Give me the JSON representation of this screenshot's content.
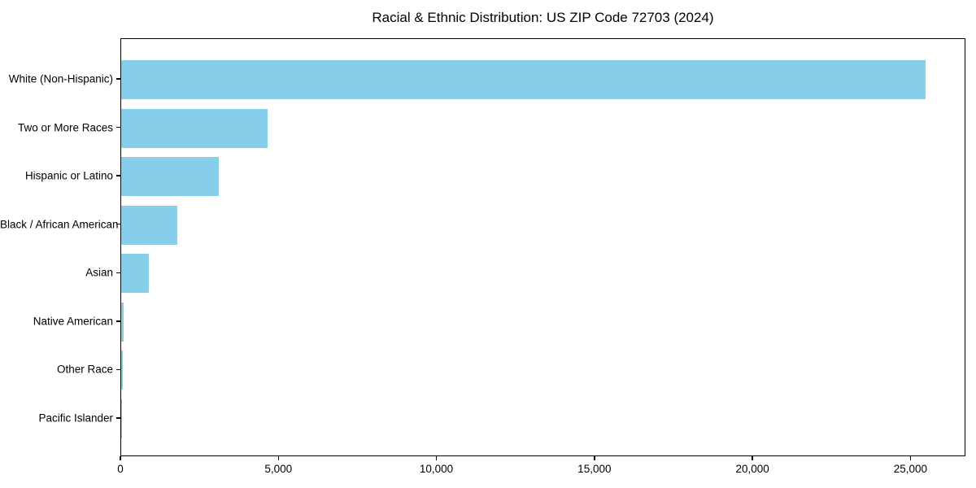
{
  "chart_data": {
    "type": "bar",
    "orientation": "horizontal",
    "title": "Racial & Ethnic Distribution: US ZIP Code 72703 (2024)",
    "categories": [
      "White (Non-Hispanic)",
      "Two or More Races",
      "Hispanic or Latino",
      "Black / African American",
      "Asian",
      "Native American",
      "Other Race",
      "Pacific Islander"
    ],
    "values": [
      25450,
      4630,
      3100,
      1780,
      870,
      70,
      40,
      8
    ],
    "xlabel": "",
    "ylabel": "",
    "xlim": [
      0,
      26740
    ],
    "x_ticks": [
      0,
      5000,
      10000,
      15000,
      20000,
      25000
    ],
    "x_tick_labels": [
      "0",
      "5,000",
      "10,000",
      "15,000",
      "20,000",
      "25,000"
    ],
    "bar_color": "#87CEEB",
    "text_color": "#000000",
    "spine_color": "#000000",
    "grid": false,
    "legend": null
  }
}
